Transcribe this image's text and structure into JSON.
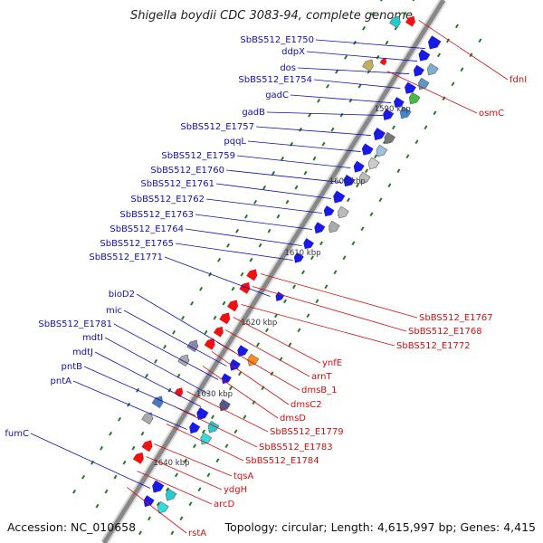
{
  "title": "Shigella boydii CDC 3083-94, complete genome",
  "footer": {
    "accession": "Accession: NC_010658",
    "summary": "Topology: circular; Length: 4,615,997 bp; Genes: 4,415"
  },
  "colors": {
    "forward_label": "#1010b0",
    "reverse_label": "#d01010",
    "forward_gene": "#1a1ae6",
    "reverse_gene": "#ee1111",
    "backbone": "#888888",
    "tick": "#1f7a1f"
  },
  "axis": {
    "unit": "kbp",
    "ticks": [
      "1590 kbp",
      "1600 kbp",
      "1610 kbp",
      "1620 kbp",
      "1630 kbp",
      "1640 kbp"
    ]
  },
  "forward_labels": [
    "SbBS512_E1750",
    "ddpX",
    "dos",
    "SbBS512_E1754",
    "gadC",
    "gadB",
    "SbBS512_E1757",
    "pqqL",
    "SbBS512_E1759",
    "SbBS512_E1760",
    "SbBS512_E1761",
    "SbBS512_E1762",
    "SbBS512_E1763",
    "SbBS512_E1764",
    "SbBS512_E1765",
    "SbBS512_E1771",
    "bioD2",
    "mic",
    "SbBS512_E1781",
    "mdtI",
    "mdtJ",
    "pntB",
    "pntA",
    "fumC"
  ],
  "reverse_labels": [
    "fdnI",
    "osmC",
    "SbBS512_E1767",
    "SbBS512_E1768",
    "SbBS512_E1772",
    "ynfE",
    "arnT",
    "dmsB_1",
    "dmsC2",
    "dmsD",
    "SbBS512_E1779",
    "SbBS512_E1783",
    "SbBS512_E1784",
    "tqsA",
    "ydgH",
    "arcD",
    "rstA"
  ]
}
